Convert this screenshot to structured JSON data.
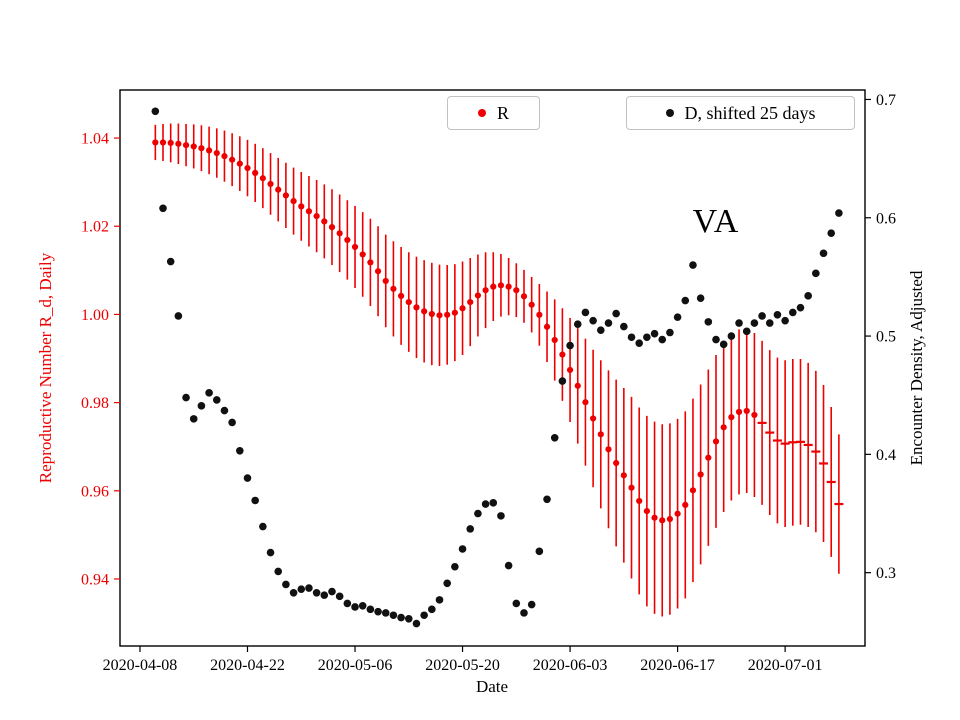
{
  "chart_data": {
    "type": "scatter",
    "title": "",
    "annotation": "VA",
    "xlabel": "Date",
    "ylabel_left": "Reproductive Number R_d, Daily",
    "ylabel_right": "Encounter Density, Adjusted",
    "grid": false,
    "x_ticks": {
      "labels": [
        "2020-04-08",
        "2020-04-22",
        "2020-05-06",
        "2020-05-20",
        "2020-06-03",
        "2020-06-17",
        "2020-07-01"
      ],
      "day_offsets": [
        0,
        14,
        28,
        42,
        56,
        70,
        84
      ]
    },
    "y_left": {
      "labels": [
        "0.94",
        "0.96",
        "0.98",
        "1.00",
        "1.02",
        "1.04"
      ],
      "ticks": [
        0.94,
        0.96,
        0.98,
        1.0,
        1.02,
        1.04
      ],
      "lim": [
        0.9248,
        1.0509
      ],
      "color": "#ee0000"
    },
    "y_right": {
      "labels": [
        "0.3",
        "0.4",
        "0.5",
        "0.6",
        "0.7"
      ],
      "ticks": [
        0.3,
        0.4,
        0.5,
        0.6,
        0.7
      ],
      "lim": [
        0.238,
        0.708
      ],
      "color": "#000000"
    },
    "dates": [
      "2020-04-10",
      "2020-04-11",
      "2020-04-12",
      "2020-04-13",
      "2020-04-14",
      "2020-04-15",
      "2020-04-16",
      "2020-04-17",
      "2020-04-18",
      "2020-04-19",
      "2020-04-20",
      "2020-04-21",
      "2020-04-22",
      "2020-04-23",
      "2020-04-24",
      "2020-04-25",
      "2020-04-26",
      "2020-04-27",
      "2020-04-28",
      "2020-04-29",
      "2020-04-30",
      "2020-05-01",
      "2020-05-02",
      "2020-05-03",
      "2020-05-04",
      "2020-05-05",
      "2020-05-06",
      "2020-05-07",
      "2020-05-08",
      "2020-05-09",
      "2020-05-10",
      "2020-05-11",
      "2020-05-12",
      "2020-05-13",
      "2020-05-14",
      "2020-05-15",
      "2020-05-16",
      "2020-05-17",
      "2020-05-18",
      "2020-05-19",
      "2020-05-20",
      "2020-05-21",
      "2020-05-22",
      "2020-05-23",
      "2020-05-24",
      "2020-05-25",
      "2020-05-26",
      "2020-05-27",
      "2020-05-28",
      "2020-05-29",
      "2020-05-30",
      "2020-05-31",
      "2020-06-01",
      "2020-06-02",
      "2020-06-03",
      "2020-06-04",
      "2020-06-05",
      "2020-06-06",
      "2020-06-07",
      "2020-06-08",
      "2020-06-09",
      "2020-06-10",
      "2020-06-11",
      "2020-06-12",
      "2020-06-13",
      "2020-06-14",
      "2020-06-15",
      "2020-06-16",
      "2020-06-17",
      "2020-06-18",
      "2020-06-19",
      "2020-06-20",
      "2020-06-21",
      "2020-06-22",
      "2020-06-23",
      "2020-06-24",
      "2020-06-25",
      "2020-06-26",
      "2020-06-27",
      "2020-06-28",
      "2020-06-29",
      "2020-06-30",
      "2020-07-01",
      "2020-07-02",
      "2020-07-03",
      "2020-07-04",
      "2020-07-05",
      "2020-07-06",
      "2020-07-07",
      "2020-07-08"
    ],
    "series": [
      {
        "name": "R",
        "axis": "left",
        "color": "#ee0000",
        "marker": "circle",
        "has_errorbars": true,
        "dash_marker_from_index": 79,
        "values": [
          1.039,
          1.039,
          1.0389,
          1.0387,
          1.0384,
          1.0381,
          1.0377,
          1.0372,
          1.0366,
          1.0359,
          1.0351,
          1.0342,
          1.0332,
          1.0321,
          1.0309,
          1.0296,
          1.0283,
          1.027,
          1.0257,
          1.0245,
          1.0234,
          1.0223,
          1.0211,
          1.0198,
          1.0184,
          1.0169,
          1.0153,
          1.0136,
          1.0118,
          1.0098,
          1.0076,
          1.0058,
          1.0042,
          1.0028,
          1.0016,
          1.0007,
          1.0001,
          0.9998,
          0.9999,
          1.0004,
          1.0014,
          1.0028,
          1.0043,
          1.0055,
          1.0063,
          1.0066,
          1.0063,
          1.0055,
          1.0041,
          1.0022,
          0.9999,
          0.9972,
          0.9942,
          0.9909,
          0.9874,
          0.9838,
          0.9801,
          0.9764,
          0.9728,
          0.9694,
          0.9663,
          0.9635,
          0.9607,
          0.9577,
          0.9554,
          0.9539,
          0.9533,
          0.9536,
          0.9548,
          0.9568,
          0.9601,
          0.9637,
          0.9675,
          0.9712,
          0.9744,
          0.9767,
          0.9779,
          0.9781,
          0.9772,
          0.9754,
          0.9732,
          0.9714,
          0.9707,
          0.971,
          0.9711,
          0.9704,
          0.9689,
          0.9662,
          0.962,
          0.957
        ],
        "errors": [
          0.004,
          0.0042,
          0.0044,
          0.0046,
          0.0048,
          0.005,
          0.0052,
          0.0054,
          0.0056,
          0.0058,
          0.006,
          0.0062,
          0.0064,
          0.0066,
          0.0068,
          0.007,
          0.0072,
          0.0074,
          0.0076,
          0.0078,
          0.008,
          0.0082,
          0.0084,
          0.0086,
          0.0088,
          0.009,
          0.0093,
          0.0096,
          0.0099,
          0.0102,
          0.0105,
          0.0108,
          0.0111,
          0.0113,
          0.0115,
          0.0116,
          0.0116,
          0.0115,
          0.0113,
          0.011,
          0.0106,
          0.01,
          0.0093,
          0.0086,
          0.0078,
          0.0071,
          0.0065,
          0.0061,
          0.006,
          0.0063,
          0.007,
          0.008,
          0.0092,
          0.0105,
          0.0118,
          0.0131,
          0.0144,
          0.0156,
          0.0168,
          0.0179,
          0.0189,
          0.0198,
          0.0206,
          0.0212,
          0.0216,
          0.0218,
          0.0218,
          0.0217,
          0.0215,
          0.0212,
          0.0208,
          0.0204,
          0.02,
          0.0196,
          0.0192,
          0.0189,
          0.0187,
          0.0186,
          0.0186,
          0.0186,
          0.0187,
          0.0188,
          0.0189,
          0.0189,
          0.0188,
          0.0186,
          0.0183,
          0.0178,
          0.017,
          0.0158
        ]
      },
      {
        "name": "D, shifted 25 days",
        "axis": "right",
        "color": "#111111",
        "marker": "circle",
        "values": [
          0.69,
          0.608,
          0.563,
          0.517,
          0.448,
          0.43,
          0.441,
          0.452,
          0.446,
          0.437,
          0.427,
          0.403,
          0.38,
          0.361,
          0.339,
          0.317,
          0.301,
          0.29,
          0.283,
          0.286,
          0.287,
          0.283,
          0.281,
          0.284,
          0.28,
          0.274,
          0.271,
          0.272,
          0.269,
          0.267,
          0.266,
          0.264,
          0.262,
          0.261,
          0.257,
          0.264,
          0.269,
          0.277,
          0.291,
          0.305,
          0.32,
          0.337,
          0.35,
          0.358,
          0.359,
          0.348,
          0.306,
          0.274,
          0.266,
          0.273,
          0.318,
          0.362,
          0.414,
          0.462,
          0.492,
          0.51,
          0.52,
          0.513,
          0.505,
          0.511,
          0.519,
          0.508,
          0.499,
          0.494,
          0.499,
          0.502,
          0.497,
          0.503,
          0.516,
          0.53,
          0.56,
          0.532,
          0.512,
          0.497,
          0.493,
          0.5,
          0.511,
          0.504,
          0.511,
          0.517,
          0.511,
          0.518,
          0.513,
          0.52,
          0.524,
          0.534,
          0.553,
          0.57,
          0.587,
          0.604
        ]
      }
    ],
    "legends": [
      {
        "label": "R",
        "color": "#ee0000"
      },
      {
        "label": "D, shifted 25 days",
        "color": "#111111"
      }
    ]
  }
}
